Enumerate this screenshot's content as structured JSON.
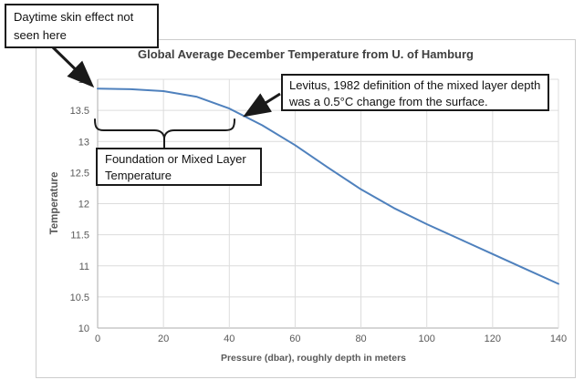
{
  "chart_data": {
    "type": "line",
    "title": "Global Average December Temperature from U. of Hamburg",
    "xlabel": "Pressure (dbar), roughly depth in meters",
    "ylabel": "Temperature",
    "x": [
      0,
      10,
      20,
      30,
      40,
      50,
      60,
      70,
      80,
      90,
      100,
      110,
      120,
      130,
      140
    ],
    "y": [
      13.85,
      13.84,
      13.81,
      13.72,
      13.53,
      13.26,
      12.94,
      12.58,
      12.23,
      11.93,
      11.67,
      11.43,
      11.19,
      10.95,
      10.71
    ],
    "xlim": [
      0,
      140
    ],
    "ylim": [
      10,
      14
    ],
    "xticks": [
      "0",
      "20",
      "40",
      "60",
      "80",
      "100",
      "120",
      "140"
    ],
    "yticks": [
      "10",
      "10.5",
      "11",
      "11.5",
      "12",
      "12.5",
      "13",
      "13.5",
      "14"
    ],
    "grid": true,
    "legend": "none",
    "line_color": "#4f81bd"
  },
  "annotations": {
    "daytime": {
      "text": "Daytime skin effect not seen here"
    },
    "levitus": {
      "text": "Levitus, 1982 definition of the mixed layer depth was a 0.5°C change from the surface."
    },
    "foundation": {
      "text": "Foundation or Mixed Layer Temperature"
    }
  },
  "colors": {
    "line": "#4f81bd",
    "gridline": "#dcdcdc",
    "axis_line": "#adadad",
    "tick_text": "#595959",
    "title_text": "#3f3f3f",
    "annotation_border": "#1a1a1a",
    "frame_border": "#cdcdcd"
  }
}
